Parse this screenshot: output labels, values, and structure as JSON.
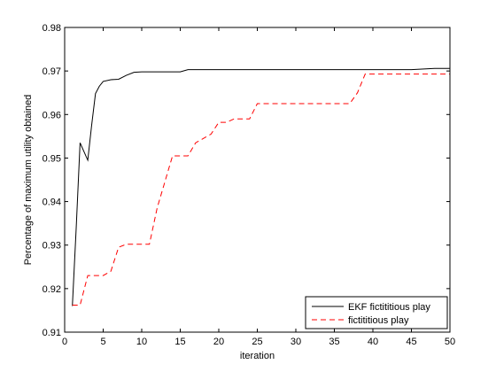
{
  "chart_data": {
    "type": "line",
    "title": "",
    "xlabel": "iteration",
    "ylabel": "Percentage of maximum utility obtained",
    "xlim": [
      0,
      50
    ],
    "ylim": [
      0.91,
      0.98
    ],
    "xticks": [
      0,
      5,
      10,
      15,
      20,
      25,
      30,
      35,
      40,
      45,
      50
    ],
    "yticks": [
      0.91,
      0.92,
      0.93,
      0.94,
      0.95,
      0.96,
      0.97,
      0.98
    ],
    "xtick_labels": [
      "0",
      "5",
      "10",
      "15",
      "20",
      "25",
      "30",
      "35",
      "40",
      "45",
      "50"
    ],
    "ytick_labels": [
      "0.91",
      "0.92",
      "0.93",
      "0.94",
      "0.95",
      "0.96",
      "0.97",
      "0.98"
    ],
    "grid": false,
    "legend_position": "bottom-right",
    "series": [
      {
        "name": "EKF fictititious play",
        "color": "#000000",
        "style": "solid",
        "x": [
          1,
          1.5,
          2,
          2.5,
          3,
          3.5,
          4,
          4.5,
          5,
          6,
          7,
          8,
          9,
          10,
          11,
          12,
          13,
          14,
          15,
          16,
          17,
          18,
          20,
          25,
          30,
          35,
          40,
          45,
          48,
          50
        ],
        "y": [
          0.916,
          0.934,
          0.9535,
          0.9515,
          0.9495,
          0.9575,
          0.9648,
          0.9665,
          0.9676,
          0.968,
          0.9681,
          0.969,
          0.9697,
          0.9698,
          0.9698,
          0.9698,
          0.9698,
          0.9698,
          0.9698,
          0.9703,
          0.9703,
          0.9703,
          0.9703,
          0.9703,
          0.9703,
          0.9703,
          0.9703,
          0.9703,
          0.9706,
          0.9706
        ]
      },
      {
        "name": "fictititious play",
        "color": "#ff0000",
        "style": "dashed",
        "x": [
          1,
          2,
          3,
          4,
          5,
          6,
          7,
          8,
          9,
          10,
          11,
          12,
          13,
          14,
          15,
          16,
          17,
          18,
          19,
          20,
          21,
          22,
          23,
          24,
          25,
          26,
          36,
          37,
          38,
          39,
          40,
          45,
          50
        ],
        "y": [
          0.9162,
          0.9162,
          0.923,
          0.923,
          0.923,
          0.924,
          0.9295,
          0.9302,
          0.9302,
          0.9302,
          0.9302,
          0.9385,
          0.9445,
          0.9505,
          0.9505,
          0.9505,
          0.9535,
          0.9545,
          0.9555,
          0.9582,
          0.9582,
          0.959,
          0.959,
          0.959,
          0.9625,
          0.9625,
          0.9625,
          0.9625,
          0.965,
          0.9693,
          0.9693,
          0.9693,
          0.9693
        ]
      }
    ]
  }
}
